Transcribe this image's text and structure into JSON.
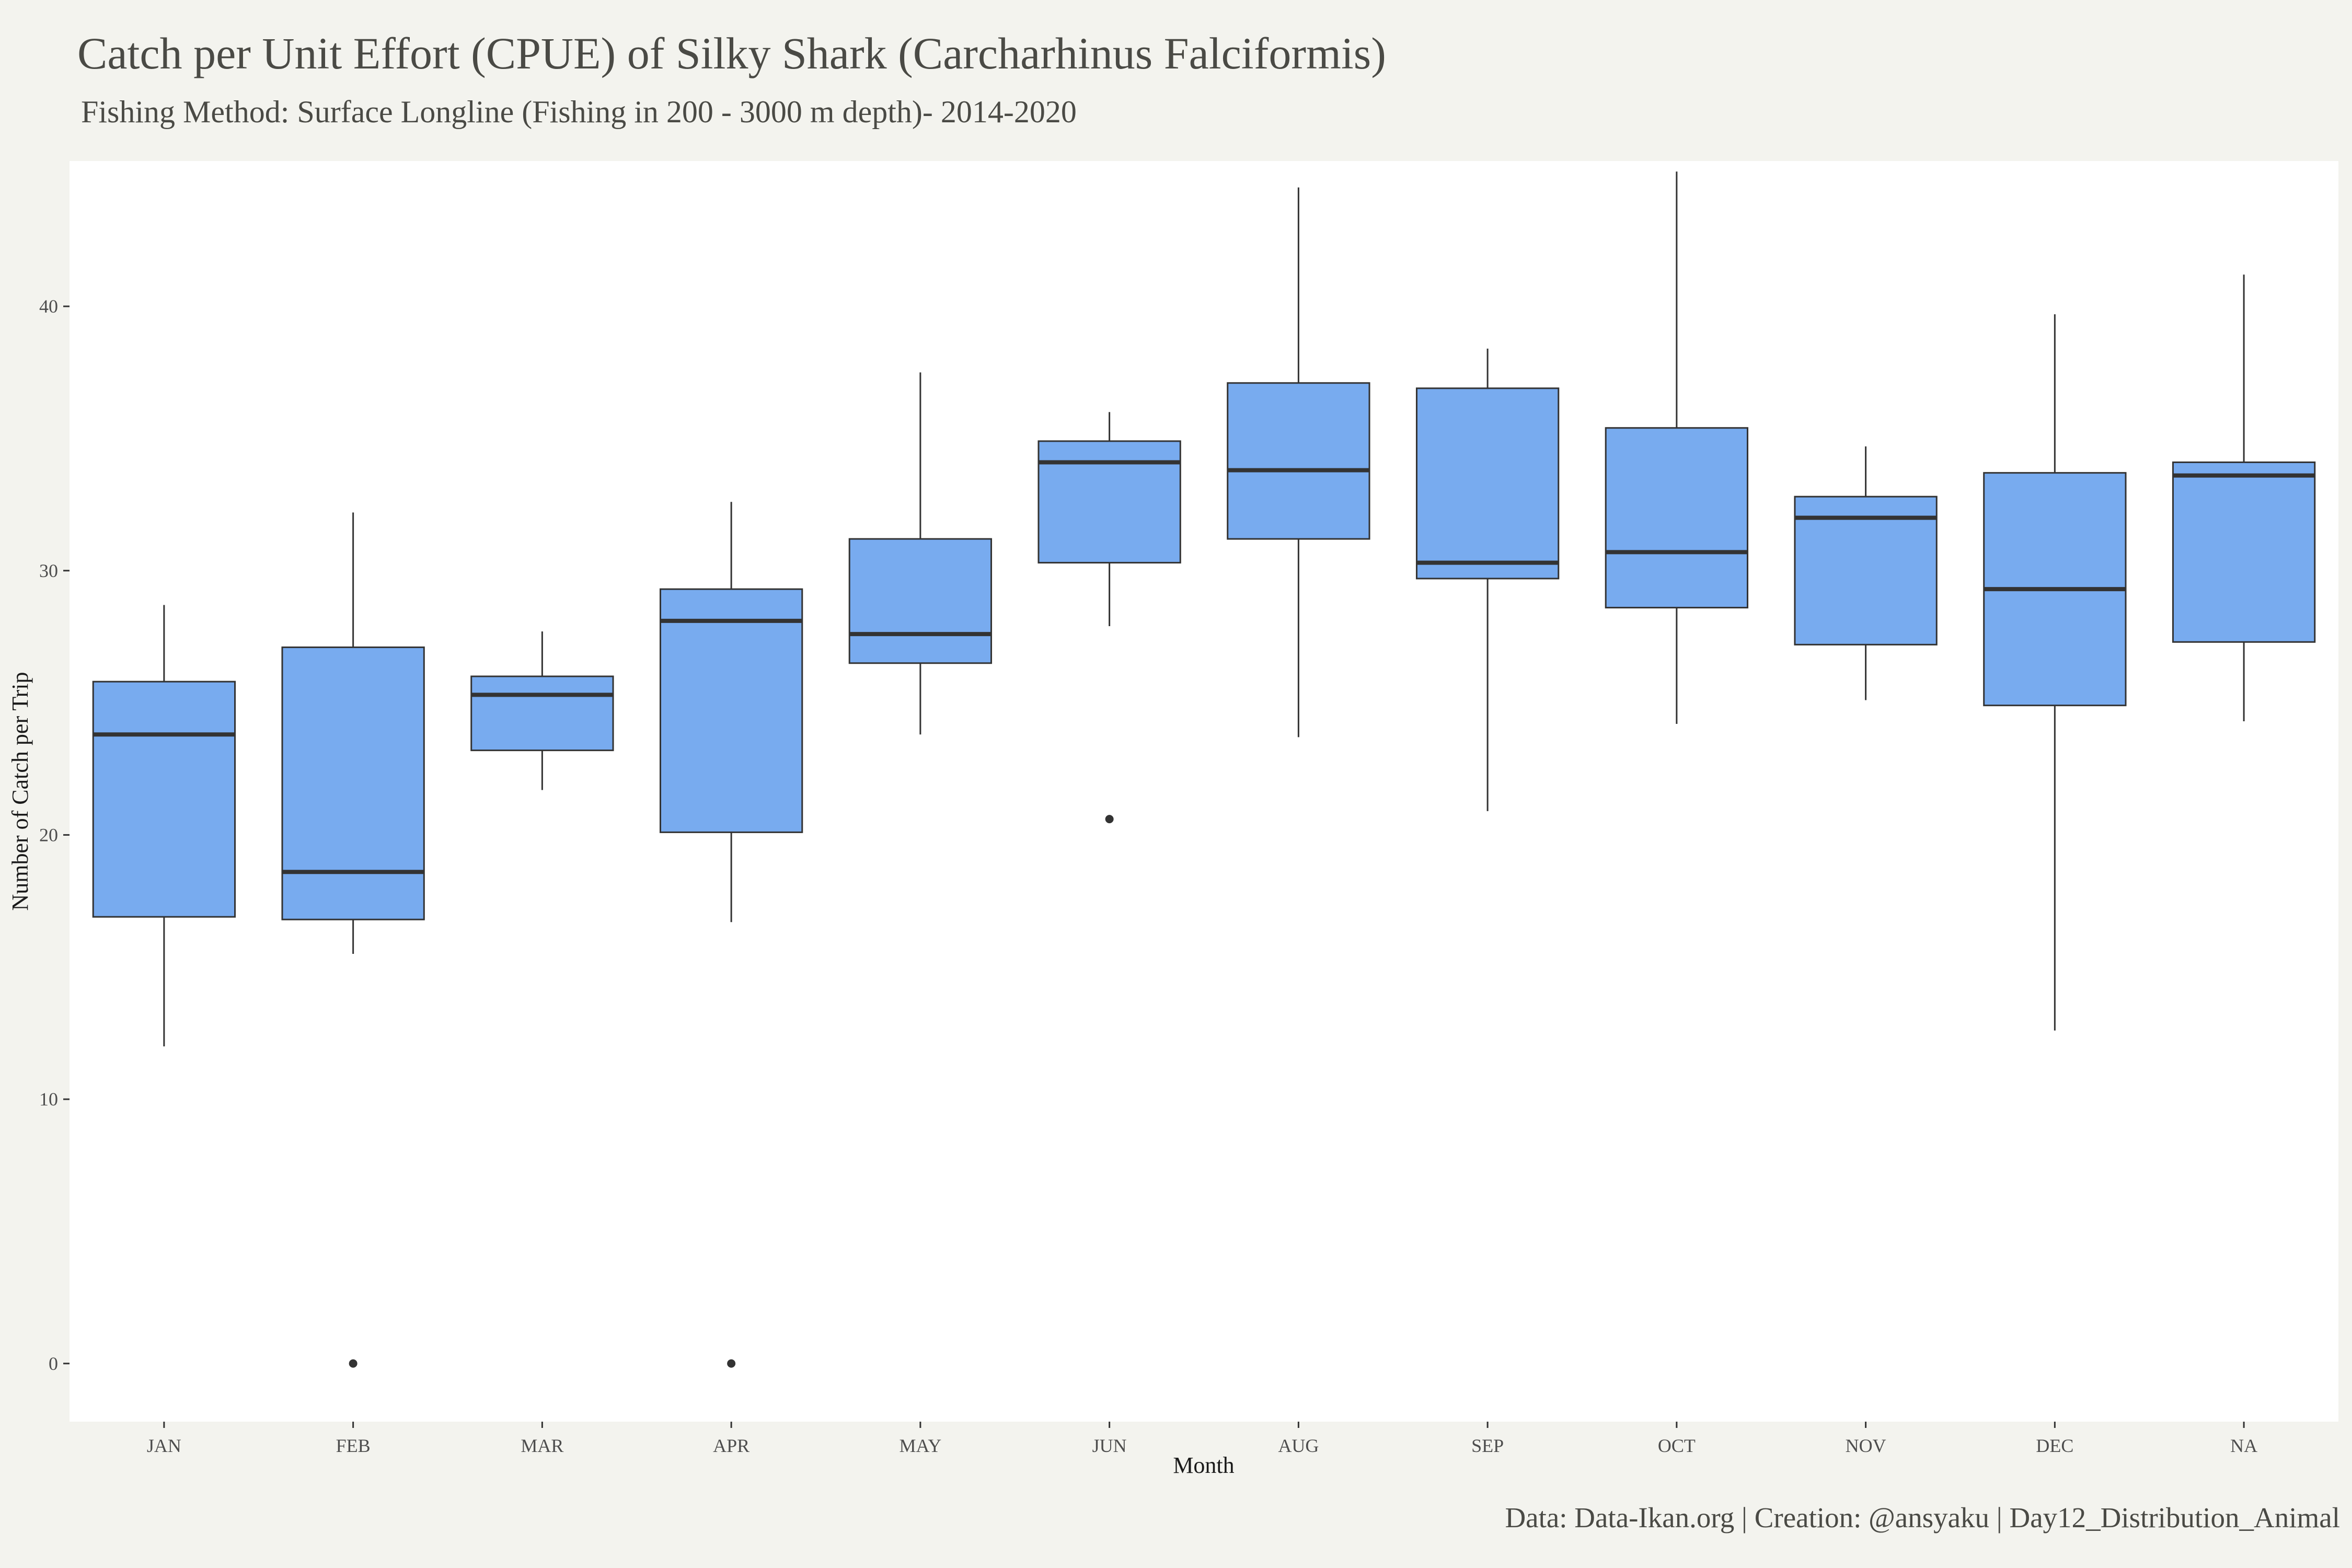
{
  "chart_data": {
    "type": "boxplot",
    "title": "Catch per Unit Effort (CPUE) of Silky Shark (Carcharhinus Falciformis)",
    "subtitle": "Fishing Method: Surface Longline (Fishing in 200 - 3000 m depth)- 2014-2020",
    "caption": "Data: Data-Ikan.org | Creation: @ansyaku | Day12_Distribution_Animal",
    "xlabel": "Month",
    "ylabel": "Number of Catch per Trip",
    "ylim": [
      -2.2,
      45.5
    ],
    "yticks": [
      0,
      10,
      20,
      30,
      40
    ],
    "grid": false,
    "box_color": "#78abef",
    "categories": [
      "JAN",
      "FEB",
      "MAR",
      "APR",
      "MAY",
      "JUN",
      "AUG",
      "SEP",
      "OCT",
      "NOV",
      "DEC",
      "NA"
    ],
    "boxes": [
      {
        "min": 12.0,
        "q1": 16.9,
        "median": 23.8,
        "q3": 25.8,
        "max": 28.7,
        "outliers": []
      },
      {
        "min": 15.5,
        "q1": 16.8,
        "median": 18.6,
        "q3": 27.1,
        "max": 32.2,
        "outliers": [
          0
        ]
      },
      {
        "min": 21.7,
        "q1": 23.2,
        "median": 25.3,
        "q3": 26.0,
        "max": 27.7,
        "outliers": []
      },
      {
        "min": 16.7,
        "q1": 20.1,
        "median": 28.1,
        "q3": 29.3,
        "max": 32.6,
        "outliers": [
          0
        ]
      },
      {
        "min": 23.8,
        "q1": 26.5,
        "median": 27.6,
        "q3": 31.2,
        "max": 37.5,
        "outliers": []
      },
      {
        "min": 27.9,
        "q1": 30.3,
        "median": 34.1,
        "q3": 34.9,
        "max": 36.0,
        "outliers": [
          20.6
        ]
      },
      {
        "min": 23.7,
        "q1": 31.2,
        "median": 33.8,
        "q3": 37.1,
        "max": 44.5,
        "outliers": []
      },
      {
        "min": 20.9,
        "q1": 29.7,
        "median": 30.3,
        "q3": 36.9,
        "max": 38.4,
        "outliers": []
      },
      {
        "min": 24.2,
        "q1": 28.6,
        "median": 30.7,
        "q3": 35.4,
        "max": 45.1,
        "outliers": []
      },
      {
        "min": 25.1,
        "q1": 27.2,
        "median": 32.0,
        "q3": 32.8,
        "max": 34.7,
        "outliers": []
      },
      {
        "min": 12.6,
        "q1": 24.9,
        "median": 29.3,
        "q3": 33.7,
        "max": 39.7,
        "outliers": []
      },
      {
        "min": 24.3,
        "q1": 27.3,
        "median": 33.6,
        "q3": 34.1,
        "max": 41.2,
        "outliers": []
      }
    ]
  }
}
